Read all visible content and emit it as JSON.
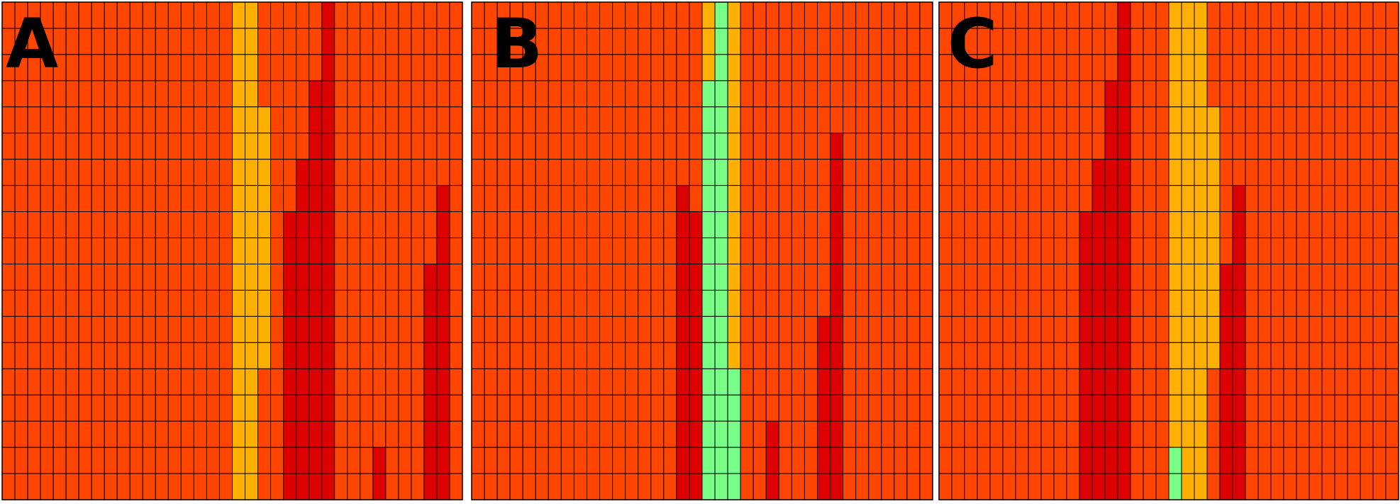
{
  "colors": {
    "background": "#ffffff",
    "grid_line": "#000000",
    "cell_base": "#ff4500",
    "cell_amber": "#ffb000",
    "cell_red": "#dd0000",
    "cell_green": "#77ff88"
  },
  "chart_data": [
    {
      "type": "heatmap",
      "panel_label": "A",
      "columns": 36,
      "rows": 19,
      "default_state": "base",
      "column_segments": [
        {
          "col": 18,
          "state": "amber",
          "from_row": 0,
          "to_row": 18
        },
        {
          "col": 19,
          "state": "amber",
          "from_row": 0,
          "to_row": 18
        },
        {
          "col": 20,
          "state": "amber",
          "from_row": 4,
          "to_row": 13
        },
        {
          "col": 22,
          "state": "red",
          "from_row": 8,
          "to_row": 18
        },
        {
          "col": 23,
          "state": "red",
          "from_row": 6,
          "to_row": 18
        },
        {
          "col": 24,
          "state": "red",
          "from_row": 3,
          "to_row": 18
        },
        {
          "col": 25,
          "state": "red",
          "from_row": 0,
          "to_row": 18
        },
        {
          "col": 29,
          "state": "red",
          "from_row": 17,
          "to_row": 18
        },
        {
          "col": 33,
          "state": "red",
          "from_row": 10,
          "to_row": 18
        },
        {
          "col": 34,
          "state": "red",
          "from_row": 7,
          "to_row": 18
        }
      ]
    },
    {
      "type": "heatmap",
      "panel_label": "B",
      "columns": 36,
      "rows": 19,
      "default_state": "base",
      "column_segments": [
        {
          "col": 16,
          "state": "red",
          "from_row": 7,
          "to_row": 18
        },
        {
          "col": 17,
          "state": "red",
          "from_row": 8,
          "to_row": 18
        },
        {
          "col": 18,
          "state": "amber",
          "from_row": 0,
          "to_row": 2
        },
        {
          "col": 18,
          "state": "green",
          "from_row": 3,
          "to_row": 18
        },
        {
          "col": 19,
          "state": "green",
          "from_row": 0,
          "to_row": 18
        },
        {
          "col": 20,
          "state": "amber",
          "from_row": 0,
          "to_row": 13
        },
        {
          "col": 20,
          "state": "green",
          "from_row": 14,
          "to_row": 18
        },
        {
          "col": 23,
          "state": "red",
          "from_row": 16,
          "to_row": 18
        },
        {
          "col": 27,
          "state": "red",
          "from_row": 12,
          "to_row": 18
        },
        {
          "col": 28,
          "state": "red",
          "from_row": 5,
          "to_row": 18
        }
      ]
    },
    {
      "type": "heatmap",
      "panel_label": "C",
      "columns": 36,
      "rows": 19,
      "default_state": "base",
      "column_segments": [
        {
          "col": 11,
          "state": "red",
          "from_row": 8,
          "to_row": 18
        },
        {
          "col": 12,
          "state": "red",
          "from_row": 6,
          "to_row": 18
        },
        {
          "col": 13,
          "state": "red",
          "from_row": 3,
          "to_row": 18
        },
        {
          "col": 14,
          "state": "red",
          "from_row": 0,
          "to_row": 18
        },
        {
          "col": 18,
          "state": "amber",
          "from_row": 0,
          "to_row": 16
        },
        {
          "col": 18,
          "state": "green",
          "from_row": 17,
          "to_row": 18
        },
        {
          "col": 19,
          "state": "amber",
          "from_row": 0,
          "to_row": 18
        },
        {
          "col": 20,
          "state": "amber",
          "from_row": 0,
          "to_row": 18
        },
        {
          "col": 21,
          "state": "amber",
          "from_row": 4,
          "to_row": 13
        },
        {
          "col": 22,
          "state": "red",
          "from_row": 10,
          "to_row": 18
        },
        {
          "col": 23,
          "state": "red",
          "from_row": 7,
          "to_row": 18
        }
      ]
    }
  ]
}
